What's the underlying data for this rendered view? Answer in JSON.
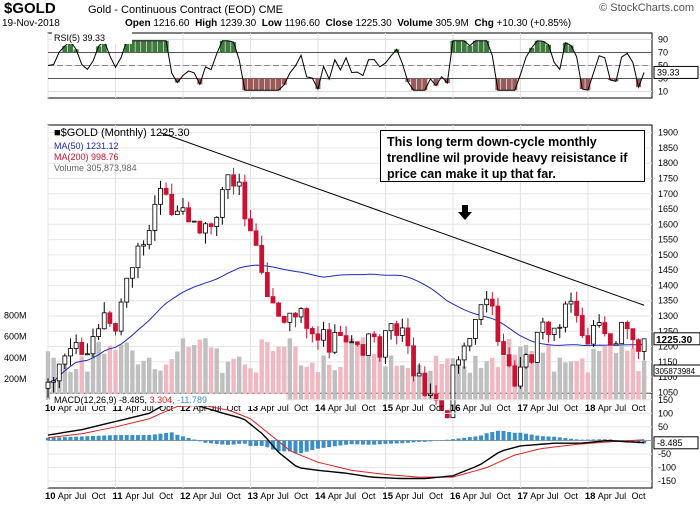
{
  "header": {
    "symbol": "$GOLD",
    "name": "Gold - Continuous Contract (EOD)",
    "exchange": "CME",
    "date": "19-Nov-2018",
    "open_label": "Open",
    "open": "1216.60",
    "high_label": "High",
    "high": "1239.30",
    "low_label": "Low",
    "low": "1196.60",
    "close_label": "Close",
    "close": "1225.30",
    "volume_label": "Volume",
    "volume": "305.9M",
    "chg_label": "Chg",
    "chg": "+10.30 (+0.85%)",
    "brand": "© StockCharts.com"
  },
  "annotation": "This long term down-cycle monthly trendline wil provide heavy reisistance if price can make it up that far.",
  "colors": {
    "up": "#000000",
    "down": "#cc1133",
    "ma50": "#1a2bb8",
    "ma200": "#cc1133",
    "vol_up": "#bfbfbf",
    "vol_down": "#f0b8c0",
    "rsi_over": "#3f7a3f",
    "rsi_under": "#9b5a5a",
    "hist": "#3a8fc9",
    "macd_signal": "#dd2222"
  },
  "chart_data": [
    {
      "type": "line",
      "panel": "rsi",
      "legend": "RSI(5) 39.33",
      "current_label": "39.33",
      "ylim": [
        0,
        100
      ],
      "y_ticks": [
        10,
        30,
        50,
        70,
        90
      ],
      "levels": [
        30,
        70
      ]
    },
    {
      "type": "candlestick",
      "panel": "price",
      "title": "$GOLD (Monthly) 1225.30",
      "legend": [
        {
          "name": "MA(50) 1231.12"
        },
        {
          "name": "MA(200) 998.76"
        },
        {
          "name": "Volume 305,873,984"
        }
      ],
      "ylim": [
        1025,
        1925
      ],
      "y_ticks": [
        1050,
        1100,
        1150,
        1200,
        1250,
        1300,
        1350,
        1400,
        1450,
        1500,
        1550,
        1600,
        1650,
        1700,
        1750,
        1800,
        1850,
        1900
      ],
      "price_label": "1225.30",
      "volume_label": "305873984",
      "volume_ticks": [
        "200M",
        "400M",
        "600M",
        "800M"
      ],
      "x_ticks": [
        "10",
        "Apr",
        "Jul",
        "Oct",
        "11",
        "Apr",
        "Jul",
        "Oct",
        "12",
        "Apr",
        "Jul",
        "Oct",
        "13",
        "Apr",
        "Jul",
        "Oct",
        "14",
        "Apr",
        "Jul",
        "Oct",
        "15",
        "Apr",
        "Jul",
        "Oct",
        "16",
        "Apr",
        "Jul",
        "Oct",
        "17",
        "Apr",
        "Jul",
        "Oct",
        "18",
        "Apr",
        "Jul",
        "Oct"
      ],
      "trendline": {
        "start": [
          "2011-09",
          1900
        ],
        "end": [
          "2018-11",
          1335
        ]
      },
      "close_anchors": [
        [
          2010.0,
          1080
        ],
        [
          2010.4,
          1200
        ],
        [
          2010.8,
          1350
        ],
        [
          2011.0,
          1330
        ],
        [
          2011.3,
          1500
        ],
        [
          2011.55,
          1620
        ],
        [
          2011.7,
          1830
        ],
        [
          2011.85,
          1720
        ],
        [
          2012.0,
          1740
        ],
        [
          2012.2,
          1650
        ],
        [
          2012.45,
          1590
        ],
        [
          2012.7,
          1760
        ],
        [
          2012.9,
          1700
        ],
        [
          2013.1,
          1600
        ],
        [
          2013.3,
          1420
        ],
        [
          2013.5,
          1320
        ],
        [
          2013.7,
          1330
        ],
        [
          2013.95,
          1200
        ],
        [
          2014.2,
          1290
        ],
        [
          2014.5,
          1320
        ],
        [
          2014.9,
          1180
        ],
        [
          2015.1,
          1280
        ],
        [
          2015.5,
          1160
        ],
        [
          2015.9,
          1060
        ],
        [
          2016.2,
          1240
        ],
        [
          2016.5,
          1360
        ],
        [
          2016.9,
          1150
        ],
        [
          2017.2,
          1250
        ],
        [
          2017.5,
          1240
        ],
        [
          2017.7,
          1320
        ],
        [
          2017.95,
          1300
        ],
        [
          2018.1,
          1330
        ],
        [
          2018.35,
          1300
        ],
        [
          2018.6,
          1220
        ],
        [
          2018.75,
          1190
        ],
        [
          2018.88,
          1225
        ]
      ]
    },
    {
      "type": "line",
      "panel": "macd",
      "legend_name": "MACD(12,26,9)",
      "legend_values": [
        "-8.485",
        "3.304",
        "-11.789"
      ],
      "current_label": "-8.485",
      "ylim": [
        -175,
        175
      ],
      "y_ticks": [
        -150,
        -100,
        -50,
        0,
        50,
        100,
        150
      ],
      "macd_anchors": [
        [
          2010.0,
          20
        ],
        [
          2010.5,
          40
        ],
        [
          2011.0,
          70
        ],
        [
          2011.5,
          100
        ],
        [
          2011.85,
          150
        ],
        [
          2012.2,
          130
        ],
        [
          2012.6,
          100
        ],
        [
          2012.9,
          80
        ],
        [
          2013.2,
          20
        ],
        [
          2013.4,
          -40
        ],
        [
          2013.7,
          -100
        ],
        [
          2014.0,
          -110
        ],
        [
          2014.4,
          -120
        ],
        [
          2014.8,
          -135
        ],
        [
          2015.2,
          -140
        ],
        [
          2015.6,
          -140
        ],
        [
          2016.0,
          -130
        ],
        [
          2016.4,
          -90
        ],
        [
          2016.7,
          -40
        ],
        [
          2017.0,
          -20
        ],
        [
          2017.5,
          -10
        ],
        [
          2017.9,
          -10
        ],
        [
          2018.3,
          0
        ],
        [
          2018.6,
          -5
        ],
        [
          2018.88,
          -8.485
        ]
      ],
      "signal_anchors": [
        [
          2010.0,
          10
        ],
        [
          2010.5,
          25
        ],
        [
          2011.0,
          50
        ],
        [
          2011.5,
          80
        ],
        [
          2011.9,
          125
        ],
        [
          2012.3,
          130
        ],
        [
          2012.7,
          110
        ],
        [
          2013.0,
          80
        ],
        [
          2013.3,
          20
        ],
        [
          2013.6,
          -40
        ],
        [
          2014.0,
          -80
        ],
        [
          2014.5,
          -110
        ],
        [
          2015.0,
          -125
        ],
        [
          2015.5,
          -135
        ],
        [
          2016.0,
          -135
        ],
        [
          2016.5,
          -100
        ],
        [
          2016.9,
          -55
        ],
        [
          2017.3,
          -30
        ],
        [
          2017.8,
          -15
        ],
        [
          2018.3,
          -5
        ],
        [
          2018.88,
          3.304
        ]
      ]
    }
  ]
}
